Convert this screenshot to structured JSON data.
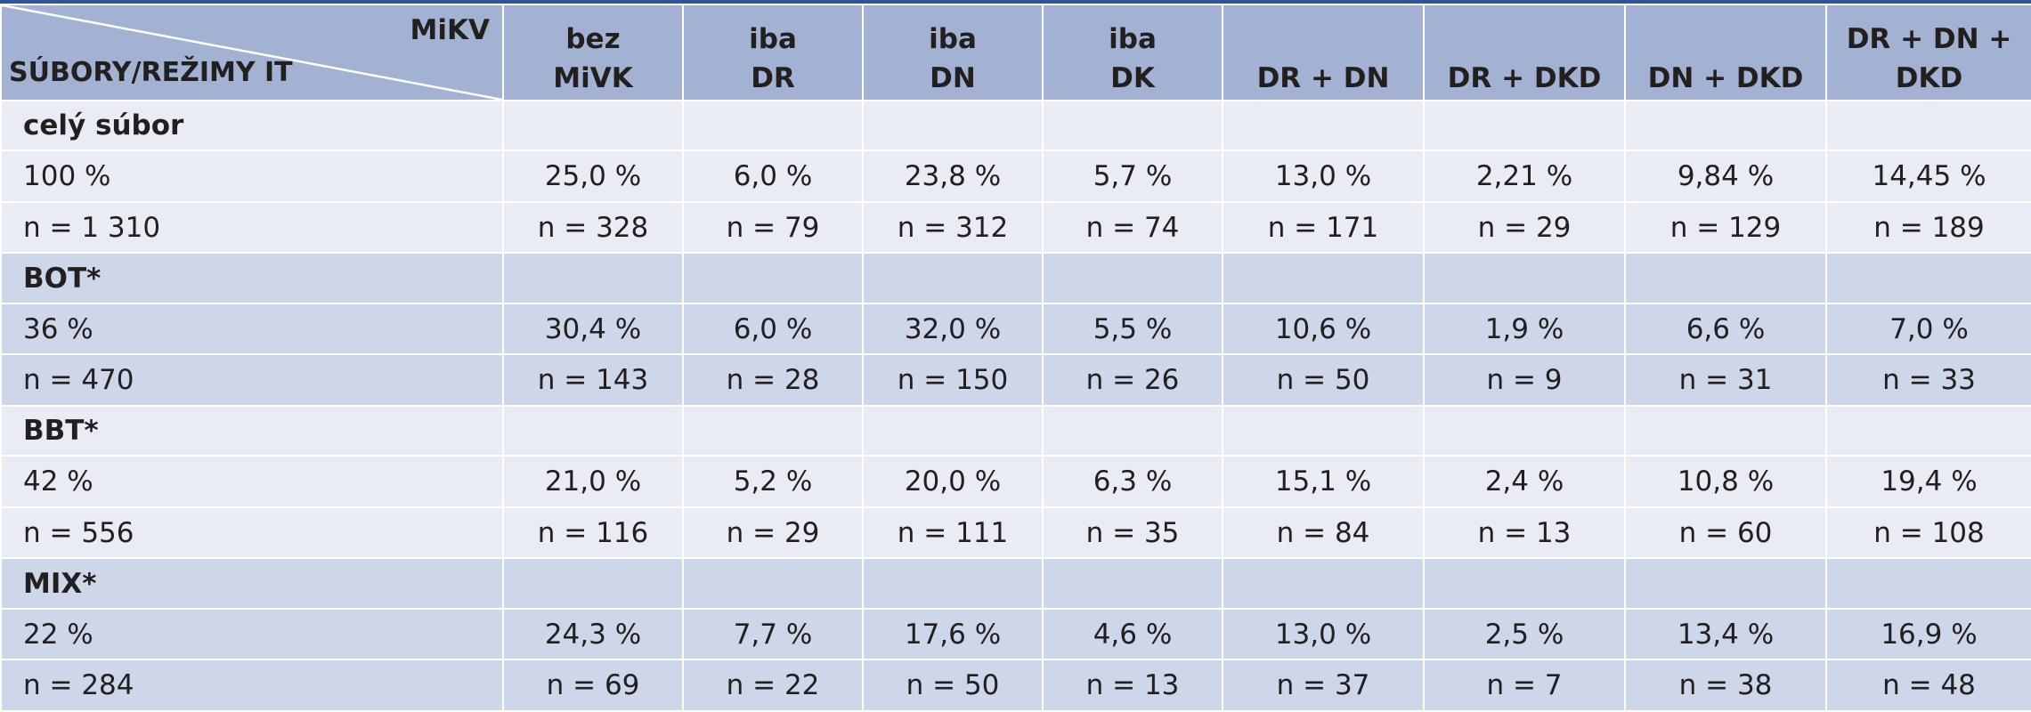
{
  "table": {
    "corner_top": "MiKV",
    "corner_bottom": "SÚBORY/REŽIMY IT",
    "columns": [
      [
        "bez",
        "MiVK"
      ],
      [
        "iba",
        "DR"
      ],
      [
        "iba",
        "DN"
      ],
      [
        "iba",
        "DK"
      ],
      [
        "",
        "DR + DN"
      ],
      [
        "",
        "DR + DKD"
      ],
      [
        "",
        "DN + DKD"
      ],
      [
        "",
        "DR + DN + DKD"
      ]
    ],
    "groups": [
      {
        "title": "celý súbor",
        "pct_label": "100 %",
        "n_label": "n = 1 310",
        "pct": [
          "25,0 %",
          "6,0 %",
          "23,8 %",
          "5,7 %",
          "13,0 %",
          "2,21 %",
          "9,84 %",
          "14,45 %"
        ],
        "n": [
          "n = 328",
          "n = 79",
          "n = 312",
          "n = 74",
          "n = 171",
          "n = 29",
          "n = 129",
          "n = 189"
        ]
      },
      {
        "title": "BOT*",
        "pct_label": "36 %",
        "n_label": "n = 470",
        "pct": [
          "30,4 %",
          "6,0 %",
          "32,0 %",
          "5,5 %",
          "10,6 %",
          "1,9 %",
          "6,6 %",
          "7,0 %"
        ],
        "n": [
          "n = 143",
          "n = 28",
          "n = 150",
          "n = 26",
          "n = 50",
          "n = 9",
          "n = 31",
          "n = 33"
        ]
      },
      {
        "title": "BBT*",
        "pct_label": "42 %",
        "n_label": "n = 556",
        "pct": [
          "21,0 %",
          "5,2 %",
          "20,0 %",
          "6,3 %",
          "15,1 %",
          "2,4 %",
          "10,8 %",
          "19,4 %"
        ],
        "n": [
          "n = 116",
          "n = 29",
          "n = 111",
          "n = 35",
          "n = 84",
          "n = 13",
          "n = 60",
          "n = 108"
        ]
      },
      {
        "title": "MIX*",
        "pct_label": "22 %",
        "n_label": "n = 284",
        "pct": [
          "24,3 %",
          "7,7 %",
          "17,6 %",
          "4,6 %",
          "13,0 %",
          "2,5 %",
          "13,4 %",
          "16,9 %"
        ],
        "n": [
          "n = 69",
          "n = 22",
          "n = 50",
          "n = 13",
          "n = 37",
          "n = 7",
          "n = 38",
          "n = 48"
        ]
      }
    ]
  }
}
